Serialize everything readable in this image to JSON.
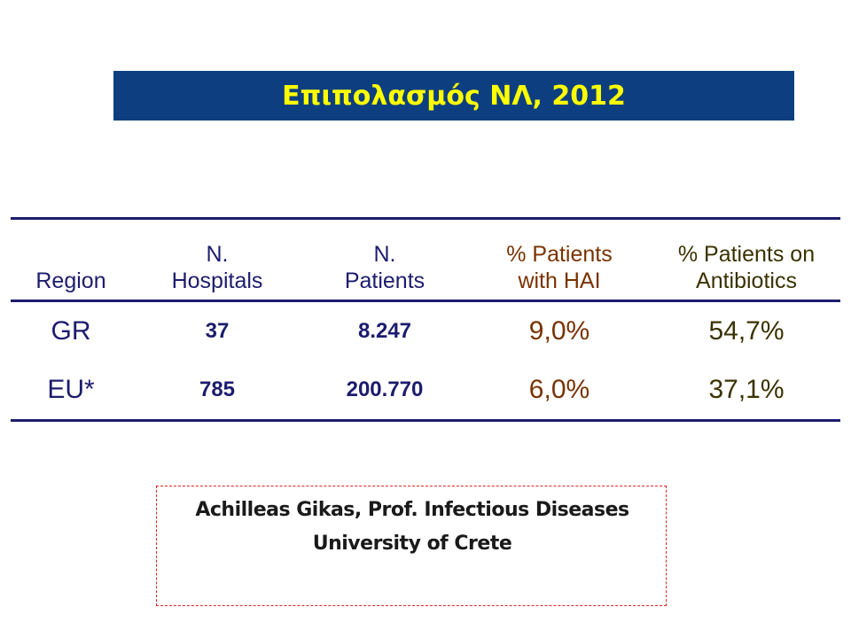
{
  "title": "Επιπολασμός ΝΛ, 2012",
  "table": {
    "headers": {
      "region": "Region",
      "hospitals_1": "N.",
      "hospitals_2": "Hospitals",
      "patients_1": "N.",
      "patients_2": "Patients",
      "hai_1": "% Patients",
      "hai_2": "with HAI",
      "abx_1": "% Patients on",
      "abx_2": "Antibiotics"
    },
    "rows": [
      {
        "region": "GR",
        "hospitals": "37",
        "patients": "8.247",
        "hai": "9,0%",
        "abx": "54,7%"
      },
      {
        "region": "EU*",
        "hospitals": "785",
        "patients": "200.770",
        "hai": "6,0%",
        "abx": "37,1%"
      }
    ]
  },
  "author": {
    "name": "Achilleas Gikas, Prof. Infectious Diseases",
    "affiliation": "University of Crete"
  },
  "colors": {
    "banner": "#0d3f80",
    "title": "#ffff00",
    "table_text": "#1c1c6e",
    "hai_text": "#7a3200",
    "abx_text": "#3a3200",
    "box_border": "#e0241f"
  }
}
